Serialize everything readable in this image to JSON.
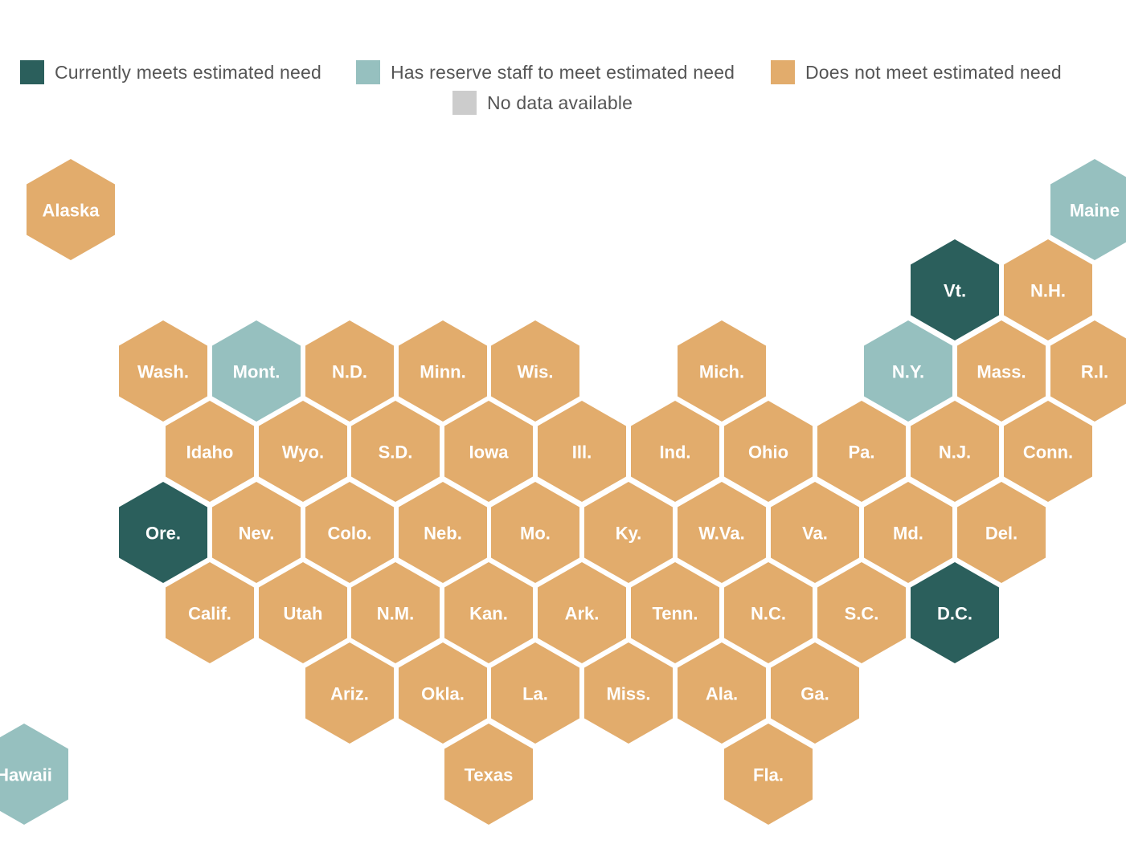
{
  "colors": {
    "meets": "#2b5f5c",
    "reserve": "#96c0bf",
    "not_meet": "#e2ac6c",
    "no_data": "#cccccc"
  },
  "legend": {
    "meets": "Currently meets estimated need",
    "reserve": "Has reserve staff to meet estimated need",
    "not_meet": "Does not meet estimated need",
    "no_data": "No data available"
  },
  "states": [
    {
      "id": "ak",
      "label": "Alaska",
      "status": "not_meet"
    },
    {
      "id": "me",
      "label": "Maine",
      "status": "reserve"
    },
    {
      "id": "vt",
      "label": "Vt.",
      "status": "meets"
    },
    {
      "id": "nh",
      "label": "N.H.",
      "status": "not_meet"
    },
    {
      "id": "wa",
      "label": "Wash.",
      "status": "not_meet"
    },
    {
      "id": "mt",
      "label": "Mont.",
      "status": "reserve"
    },
    {
      "id": "nd",
      "label": "N.D.",
      "status": "not_meet"
    },
    {
      "id": "mn",
      "label": "Minn.",
      "status": "not_meet"
    },
    {
      "id": "wi",
      "label": "Wis.",
      "status": "not_meet"
    },
    {
      "id": "mi",
      "label": "Mich.",
      "status": "not_meet"
    },
    {
      "id": "ny",
      "label": "N.Y.",
      "status": "reserve"
    },
    {
      "id": "ma",
      "label": "Mass.",
      "status": "not_meet"
    },
    {
      "id": "ri",
      "label": "R.I.",
      "status": "not_meet"
    },
    {
      "id": "id",
      "label": "Idaho",
      "status": "not_meet"
    },
    {
      "id": "wy",
      "label": "Wyo.",
      "status": "not_meet"
    },
    {
      "id": "sd",
      "label": "S.D.",
      "status": "not_meet"
    },
    {
      "id": "ia",
      "label": "Iowa",
      "status": "not_meet"
    },
    {
      "id": "il",
      "label": "Ill.",
      "status": "not_meet"
    },
    {
      "id": "in",
      "label": "Ind.",
      "status": "not_meet"
    },
    {
      "id": "oh",
      "label": "Ohio",
      "status": "not_meet"
    },
    {
      "id": "pa",
      "label": "Pa.",
      "status": "not_meet"
    },
    {
      "id": "nj",
      "label": "N.J.",
      "status": "not_meet"
    },
    {
      "id": "ct",
      "label": "Conn.",
      "status": "not_meet"
    },
    {
      "id": "or",
      "label": "Ore.",
      "status": "meets"
    },
    {
      "id": "nv",
      "label": "Nev.",
      "status": "not_meet"
    },
    {
      "id": "co",
      "label": "Colo.",
      "status": "not_meet"
    },
    {
      "id": "ne",
      "label": "Neb.",
      "status": "not_meet"
    },
    {
      "id": "mo",
      "label": "Mo.",
      "status": "not_meet"
    },
    {
      "id": "ky",
      "label": "Ky.",
      "status": "not_meet"
    },
    {
      "id": "wv",
      "label": "W.Va.",
      "status": "not_meet"
    },
    {
      "id": "va",
      "label": "Va.",
      "status": "not_meet"
    },
    {
      "id": "md",
      "label": "Md.",
      "status": "not_meet"
    },
    {
      "id": "de",
      "label": "Del.",
      "status": "not_meet"
    },
    {
      "id": "ca",
      "label": "Calif.",
      "status": "not_meet"
    },
    {
      "id": "ut",
      "label": "Utah",
      "status": "not_meet"
    },
    {
      "id": "nm",
      "label": "N.M.",
      "status": "not_meet"
    },
    {
      "id": "ks",
      "label": "Kan.",
      "status": "not_meet"
    },
    {
      "id": "ar",
      "label": "Ark.",
      "status": "not_meet"
    },
    {
      "id": "tn",
      "label": "Tenn.",
      "status": "not_meet"
    },
    {
      "id": "nc",
      "label": "N.C.",
      "status": "not_meet"
    },
    {
      "id": "sc",
      "label": "S.C.",
      "status": "not_meet"
    },
    {
      "id": "dc",
      "label": "D.C.",
      "status": "meets"
    },
    {
      "id": "az",
      "label": "Ariz.",
      "status": "not_meet"
    },
    {
      "id": "ok",
      "label": "Okla.",
      "status": "not_meet"
    },
    {
      "id": "la",
      "label": "La.",
      "status": "not_meet"
    },
    {
      "id": "ms",
      "label": "Miss.",
      "status": "not_meet"
    },
    {
      "id": "al",
      "label": "Ala.",
      "status": "not_meet"
    },
    {
      "id": "ga",
      "label": "Ga.",
      "status": "not_meet"
    },
    {
      "id": "hi",
      "label": "Hawaii",
      "status": "reserve"
    },
    {
      "id": "tx",
      "label": "Texas",
      "status": "not_meet"
    },
    {
      "id": "fl",
      "label": "Fla.",
      "status": "not_meet"
    }
  ]
}
